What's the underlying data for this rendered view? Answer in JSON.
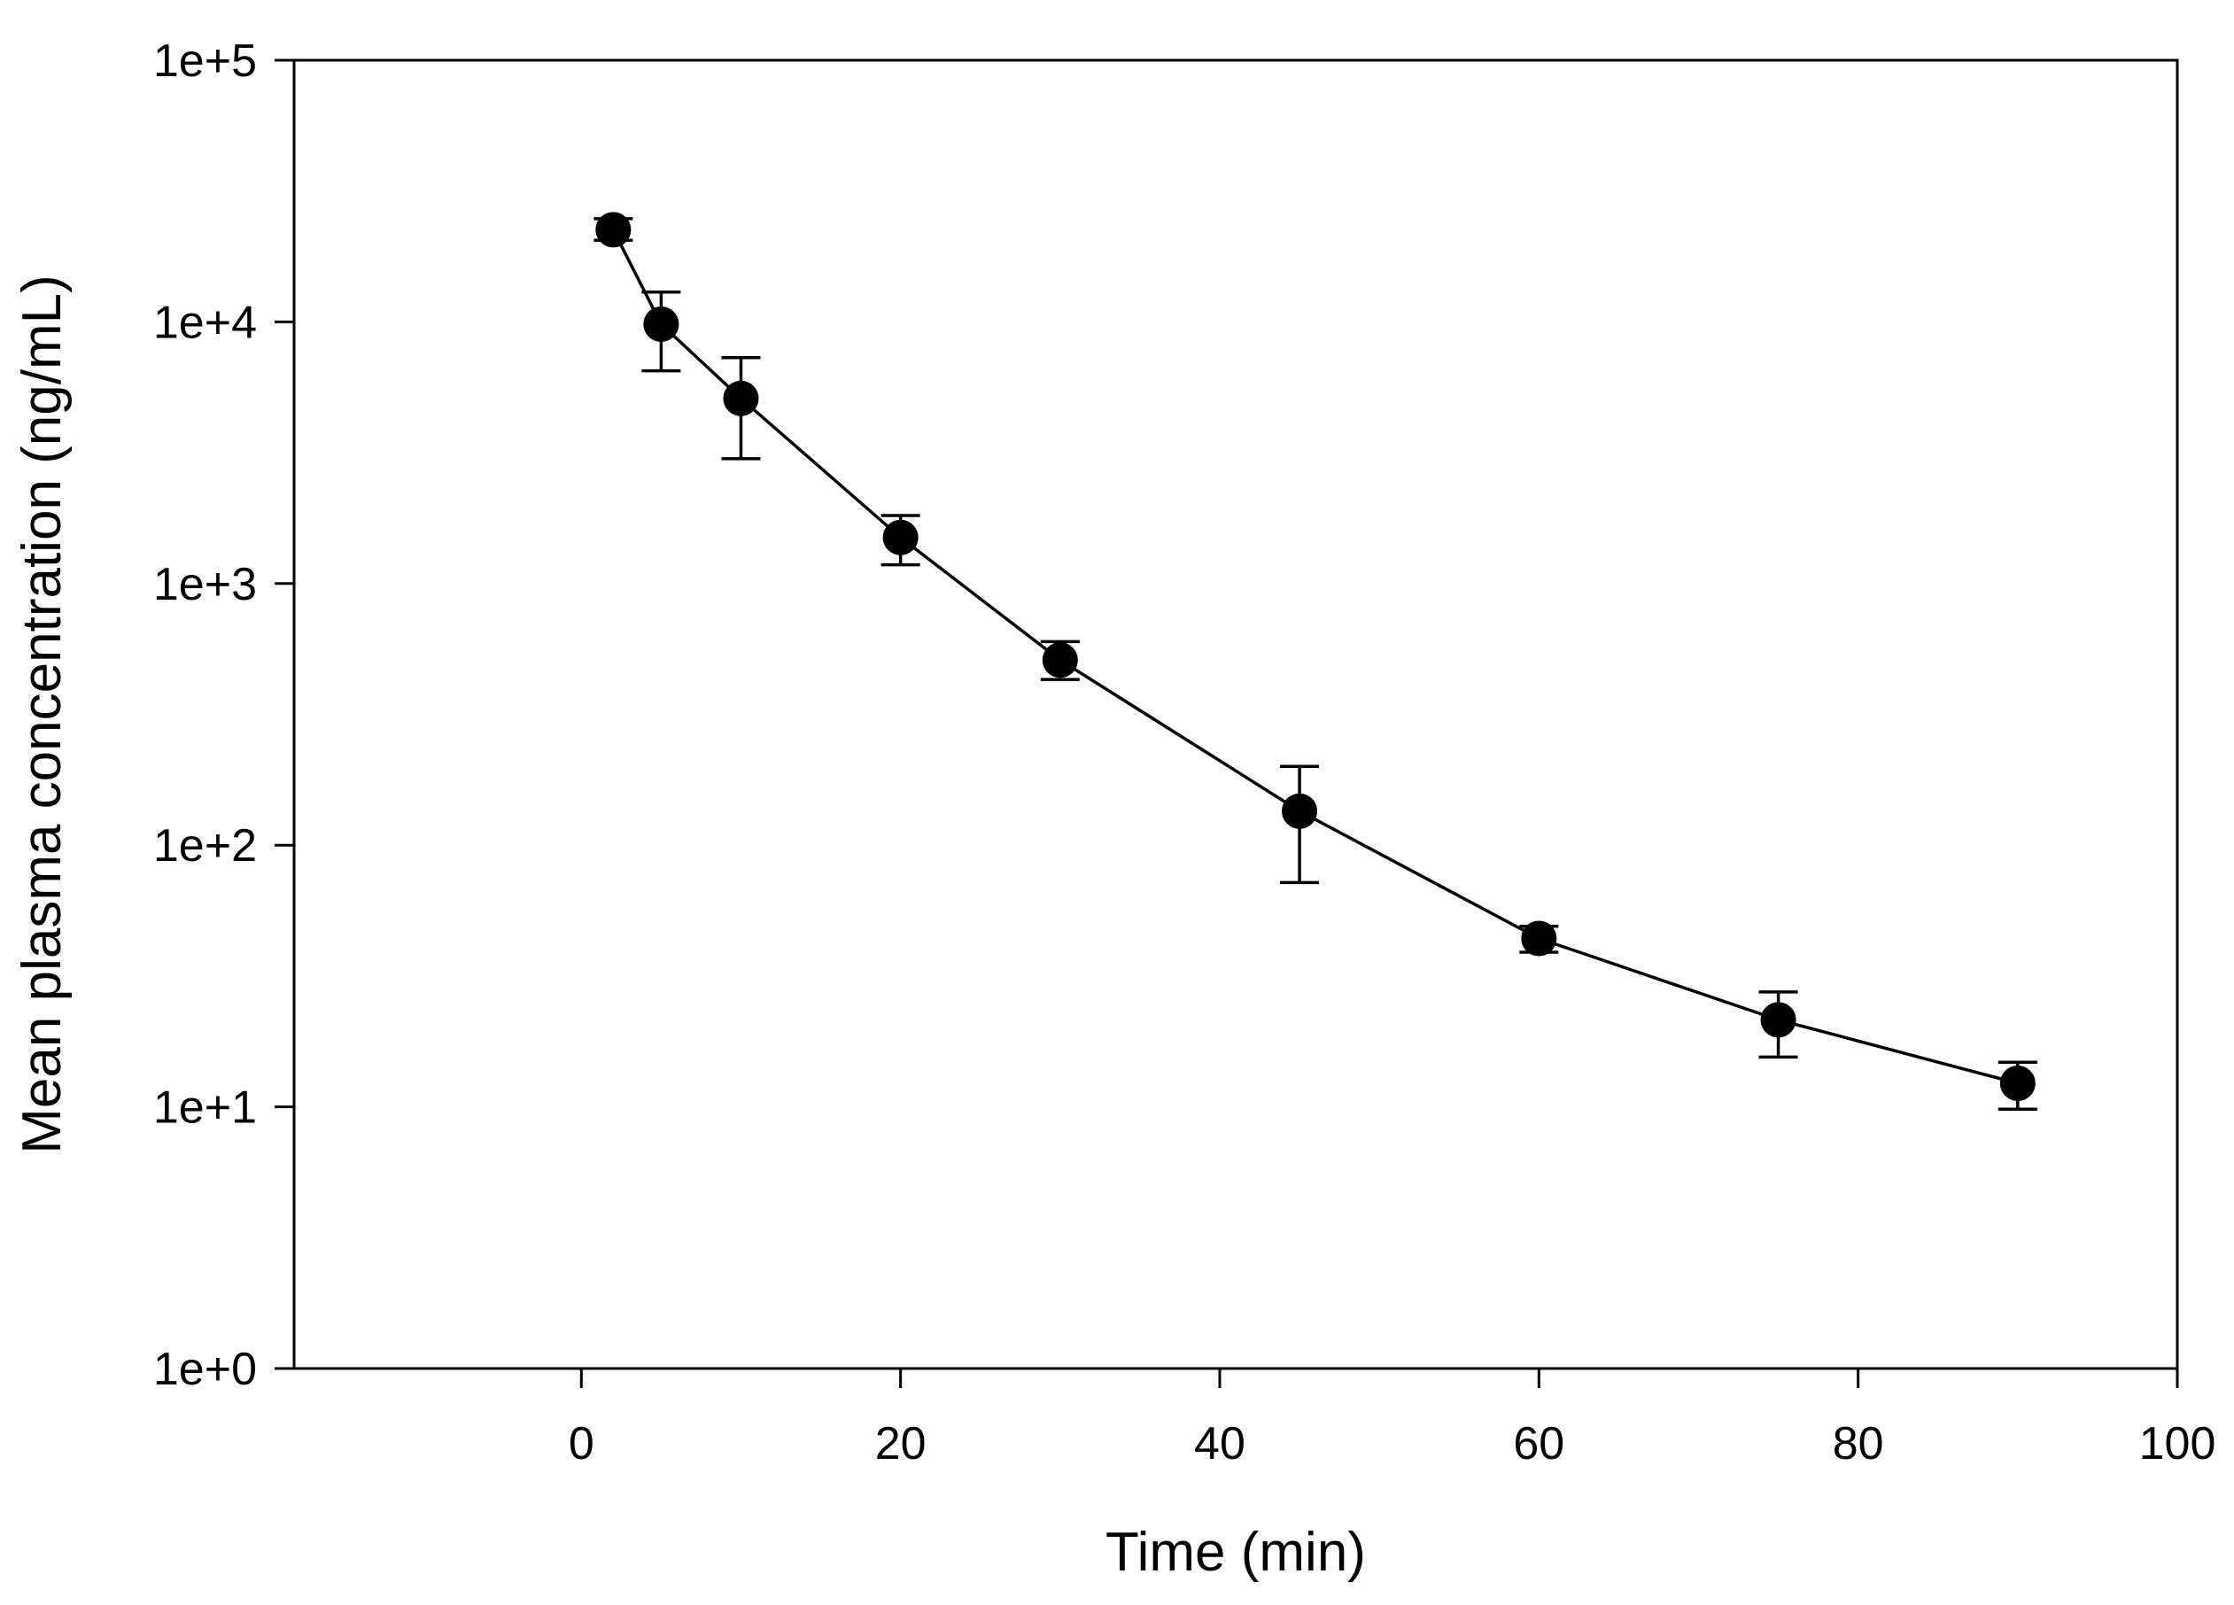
{
  "chart_data": {
    "type": "line",
    "title": "",
    "xlabel": "Time (min)",
    "ylabel": "Mean plasma concentration (ng/mL)",
    "xlim": [
      -18,
      100
    ],
    "ylim": [
      1,
      100000
    ],
    "yscale": "log",
    "grid": false,
    "x_ticks": [
      0,
      20,
      40,
      60,
      80,
      100
    ],
    "x_tick_labels": [
      "0",
      "20",
      "40",
      "60",
      "80",
      "100"
    ],
    "y_ticks": [
      1,
      10,
      100,
      1000,
      10000,
      100000
    ],
    "y_tick_labels": [
      "1e+0",
      "1e+1",
      "1e+2",
      "1e+3",
      "1e+4",
      "1e+5"
    ],
    "series": [
      {
        "name": "Mean plasma concentration",
        "marker": "filled-circle",
        "color": "#000000",
        "x": [
          2,
          5,
          10,
          20,
          30,
          45,
          60,
          75,
          90
        ],
        "y": [
          22500,
          9800,
          5100,
          1500,
          510,
          135,
          44,
          21.5,
          12.3
        ],
        "err_low": [
          20500,
          6500,
          3000,
          1180,
          430,
          72,
          39,
          15.5,
          9.8
        ],
        "err_high": [
          24800,
          13000,
          7300,
          1820,
          600,
          200,
          49,
          27.5,
          14.8
        ]
      }
    ]
  }
}
